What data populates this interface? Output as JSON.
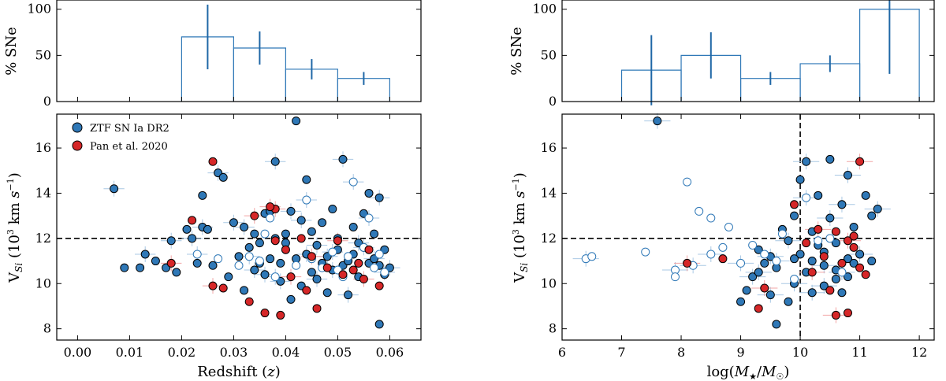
{
  "colors": {
    "ztf": "#2f78b7",
    "ztf_light": "#a9c8e4",
    "pan": "#d62728",
    "pan_light": "#f2a5a5",
    "bar": "#2f78b7"
  },
  "chart_data": [
    {
      "id": "hist_z",
      "type": "bar",
      "ylabel": "% SNe",
      "ylim": [
        0,
        110
      ],
      "yticks": [
        0,
        50,
        100
      ],
      "xlim": [
        -0.004,
        0.066
      ],
      "bins": [
        {
          "x0": 0.02,
          "x1": 0.03,
          "value": 70,
          "err": 35
        },
        {
          "x0": 0.03,
          "x1": 0.04,
          "value": 58,
          "err": 18
        },
        {
          "x0": 0.04,
          "x1": 0.05,
          "value": 35,
          "err": 11
        },
        {
          "x0": 0.05,
          "x1": 0.06,
          "value": 25,
          "err": 7
        }
      ]
    },
    {
      "id": "hist_m",
      "type": "bar",
      "ylabel": "% SNe",
      "ylim": [
        0,
        110
      ],
      "yticks": [
        0,
        50,
        100
      ],
      "xlim": [
        6,
        12.25
      ],
      "bins": [
        {
          "x0": 7,
          "x1": 8,
          "value": 34,
          "err": 38
        },
        {
          "x0": 8,
          "x1": 9,
          "value": 50,
          "err": 25
        },
        {
          "x0": 9,
          "x1": 10,
          "value": 25,
          "err": 7
        },
        {
          "x0": 10,
          "x1": 11,
          "value": 41,
          "err": 9
        },
        {
          "x0": 11,
          "x1": 12,
          "value": 100,
          "err": 70
        }
      ]
    },
    {
      "id": "scatter_z",
      "type": "scatter",
      "xlabel": "Redshift (z)",
      "ylabel": "V_Si (10^3 km s^-1)",
      "xlim": [
        -0.004,
        0.066
      ],
      "ylim": [
        7.5,
        17.5
      ],
      "xticks": [
        "0.00",
        "0.01",
        "0.02",
        "0.03",
        "0.04",
        "0.05",
        "0.06"
      ],
      "yticks": [
        8,
        10,
        12,
        14,
        16
      ],
      "hline": 12,
      "legend": [
        "ZTF SN Ia DR2",
        "Pan et al. 2020"
      ],
      "series": [
        {
          "name": "ZTF SN Ia DR2",
          "points": [
            [
              0.007,
              14.2
            ],
            [
              0.009,
              10.7
            ],
            [
              0.012,
              10.7
            ],
            [
              0.013,
              11.3
            ],
            [
              0.015,
              11.0
            ],
            [
              0.017,
              10.7
            ],
            [
              0.018,
              11.9
            ],
            [
              0.019,
              10.5
            ],
            [
              0.021,
              12.4
            ],
            [
              0.022,
              12.0
            ],
            [
              0.023,
              10.9
            ],
            [
              0.024,
              13.9
            ],
            [
              0.024,
              12.5
            ],
            [
              0.025,
              12.4
            ],
            [
              0.026,
              10.8
            ],
            [
              0.027,
              14.9
            ],
            [
              0.028,
              14.7
            ],
            [
              0.029,
              10.3
            ],
            [
              0.03,
              12.7
            ],
            [
              0.031,
              11.2
            ],
            [
              0.032,
              9.7
            ],
            [
              0.032,
              12.5
            ],
            [
              0.033,
              11.6
            ],
            [
              0.034,
              12.2
            ],
            [
              0.034,
              10.6
            ],
            [
              0.035,
              11.8
            ],
            [
              0.036,
              13.1
            ],
            [
              0.036,
              10.4
            ],
            [
              0.037,
              13.2
            ],
            [
              0.037,
              11.1
            ],
            [
              0.038,
              15.4
            ],
            [
              0.038,
              12.0
            ],
            [
              0.039,
              10.9
            ],
            [
              0.039,
              10.1
            ],
            [
              0.04,
              12.2
            ],
            [
              0.04,
              11.8
            ],
            [
              0.041,
              13.2
            ],
            [
              0.042,
              11.1
            ],
            [
              0.042,
              17.2
            ],
            [
              0.043,
              12.8
            ],
            [
              0.043,
              9.9
            ],
            [
              0.044,
              14.6
            ],
            [
              0.044,
              11.3
            ],
            [
              0.045,
              12.3
            ],
            [
              0.045,
              10.5
            ],
            [
              0.046,
              11.7
            ],
            [
              0.047,
              12.7
            ],
            [
              0.047,
              10.9
            ],
            [
              0.048,
              11.2
            ],
            [
              0.048,
              9.6
            ],
            [
              0.049,
              13.3
            ],
            [
              0.049,
              10.6
            ],
            [
              0.05,
              12.0
            ],
            [
              0.05,
              11.5
            ],
            [
              0.051,
              15.5
            ],
            [
              0.051,
              10.8
            ],
            [
              0.052,
              11.0
            ],
            [
              0.052,
              9.5
            ],
            [
              0.053,
              12.5
            ],
            [
              0.053,
              11.3
            ],
            [
              0.054,
              11.8
            ],
            [
              0.054,
              10.3
            ],
            [
              0.055,
              13.1
            ],
            [
              0.055,
              11.6
            ],
            [
              0.056,
              10.9
            ],
            [
              0.056,
              14.0
            ],
            [
              0.057,
              11.1
            ],
            [
              0.057,
              12.2
            ],
            [
              0.058,
              10.8
            ],
            [
              0.058,
              13.8
            ],
            [
              0.059,
              11.5
            ],
            [
              0.059,
              10.4
            ],
            [
              0.06,
              10.7
            ],
            [
              0.058,
              8.2
            ],
            [
              0.035,
              10.9
            ],
            [
              0.046,
              10.2
            ],
            [
              0.041,
              9.3
            ]
          ]
        },
        {
          "name": "ZTF SN Ia DR2 (open)",
          "points": [
            [
              0.023,
              11.3
            ],
            [
              0.027,
              11.1
            ],
            [
              0.031,
              10.8
            ],
            [
              0.033,
              11.2
            ],
            [
              0.035,
              11.0
            ],
            [
              0.037,
              12.9
            ],
            [
              0.038,
              10.3
            ],
            [
              0.04,
              11.5
            ],
            [
              0.042,
              10.8
            ],
            [
              0.044,
              13.7
            ],
            [
              0.045,
              11.1
            ],
            [
              0.047,
              10.7
            ],
            [
              0.049,
              11.4
            ],
            [
              0.05,
              10.6
            ],
            [
              0.052,
              11.2
            ],
            [
              0.053,
              14.5
            ],
            [
              0.054,
              10.9
            ],
            [
              0.055,
              11.6
            ],
            [
              0.056,
              12.9
            ],
            [
              0.057,
              10.7
            ],
            [
              0.058,
              11.3
            ],
            [
              0.059,
              10.5
            ],
            [
              0.036,
              12.2
            ],
            [
              0.051,
              10.3
            ]
          ]
        },
        {
          "name": "Pan et al. 2020",
          "points": [
            [
              0.018,
              10.9
            ],
            [
              0.022,
              12.8
            ],
            [
              0.026,
              15.4
            ],
            [
              0.026,
              9.9
            ],
            [
              0.028,
              9.8
            ],
            [
              0.033,
              9.2
            ],
            [
              0.034,
              13.0
            ],
            [
              0.036,
              8.7
            ],
            [
              0.038,
              11.9
            ],
            [
              0.038,
              13.3
            ],
            [
              0.039,
              8.6
            ],
            [
              0.04,
              11.5
            ],
            [
              0.041,
              10.3
            ],
            [
              0.043,
              12.0
            ],
            [
              0.044,
              9.7
            ],
            [
              0.045,
              11.2
            ],
            [
              0.046,
              8.9
            ],
            [
              0.048,
              10.7
            ],
            [
              0.05,
              11.9
            ],
            [
              0.051,
              10.4
            ],
            [
              0.053,
              10.6
            ],
            [
              0.055,
              10.2
            ],
            [
              0.056,
              11.5
            ],
            [
              0.058,
              9.9
            ],
            [
              0.037,
              13.4
            ],
            [
              0.054,
              10.9
            ]
          ]
        }
      ]
    },
    {
      "id": "scatter_m",
      "type": "scatter",
      "xlabel": "log(M★/M☉)",
      "ylabel": "V_Si (10^3 km s^-1)",
      "xlim": [
        6,
        12.25
      ],
      "ylim": [
        7.5,
        17.5
      ],
      "xticks": [
        "6",
        "7",
        "8",
        "9",
        "10",
        "11",
        "12"
      ],
      "yticks": [
        8,
        10,
        12,
        14,
        16
      ],
      "hline": 12,
      "vline": 10,
      "series": [
        {
          "name": "ZTF SN Ia DR2",
          "points": [
            [
              7.6,
              17.2
            ],
            [
              9.0,
              9.2
            ],
            [
              9.1,
              9.7
            ],
            [
              9.2,
              10.3
            ],
            [
              9.3,
              11.5
            ],
            [
              9.4,
              10.9
            ],
            [
              9.5,
              9.5
            ],
            [
              9.6,
              10.7
            ],
            [
              9.7,
              12.4
            ],
            [
              9.8,
              11.9
            ],
            [
              9.8,
              9.2
            ],
            [
              9.9,
              13.0
            ],
            [
              9.9,
              10.0
            ],
            [
              10.0,
              11.3
            ],
            [
              10.0,
              14.6
            ],
            [
              10.1,
              15.4
            ],
            [
              10.1,
              10.5
            ],
            [
              10.2,
              12.3
            ],
            [
              10.2,
              9.6
            ],
            [
              10.3,
              11.7
            ],
            [
              10.3,
              13.9
            ],
            [
              10.4,
              10.8
            ],
            [
              10.4,
              11.4
            ],
            [
              10.5,
              15.5
            ],
            [
              10.5,
              12.9
            ],
            [
              10.6,
              10.2
            ],
            [
              10.6,
              11.8
            ],
            [
              10.7,
              13.5
            ],
            [
              10.7,
              9.6
            ],
            [
              10.8,
              11.1
            ],
            [
              10.8,
              14.8
            ],
            [
              10.9,
              10.9
            ],
            [
              10.9,
              12.5
            ],
            [
              11.0,
              11.3
            ],
            [
              11.1,
              13.9
            ],
            [
              11.2,
              13.0
            ],
            [
              11.3,
              13.3
            ],
            [
              11.2,
              11.0
            ],
            [
              9.6,
              8.2
            ],
            [
              9.3,
              10.5
            ],
            [
              9.9,
              11.1
            ],
            [
              10.2,
              11.0
            ],
            [
              10.4,
              9.9
            ],
            [
              10.6,
              10.6
            ],
            [
              10.8,
              10.3
            ],
            [
              9.5,
              11.2
            ]
          ]
        },
        {
          "name": "ZTF SN Ia DR2 (open)",
          "points": [
            [
              6.4,
              11.1
            ],
            [
              6.5,
              11.2
            ],
            [
              7.4,
              11.4
            ],
            [
              7.9,
              10.6
            ],
            [
              7.9,
              10.3
            ],
            [
              8.1,
              14.5
            ],
            [
              8.2,
              10.8
            ],
            [
              8.3,
              13.2
            ],
            [
              8.5,
              12.9
            ],
            [
              8.5,
              11.3
            ],
            [
              8.7,
              11.6
            ],
            [
              8.8,
              12.5
            ],
            [
              9.0,
              10.9
            ],
            [
              9.2,
              11.7
            ],
            [
              9.4,
              11.3
            ],
            [
              9.6,
              11.0
            ],
            [
              9.7,
              12.2
            ],
            [
              9.9,
              10.2
            ],
            [
              10.1,
              13.8
            ],
            [
              10.3,
              11.9
            ],
            [
              10.5,
              12.0
            ],
            [
              10.7,
              10.5
            ]
          ]
        },
        {
          "name": "Pan et al. 2020",
          "points": [
            [
              8.1,
              10.9
            ],
            [
              8.7,
              11.1
            ],
            [
              9.3,
              8.9
            ],
            [
              9.4,
              9.8
            ],
            [
              9.9,
              13.5
            ],
            [
              10.1,
              11.8
            ],
            [
              10.2,
              10.5
            ],
            [
              10.4,
              11.2
            ],
            [
              10.5,
              9.7
            ],
            [
              10.6,
              8.6
            ],
            [
              10.6,
              12.3
            ],
            [
              10.7,
              10.9
            ],
            [
              10.8,
              11.9
            ],
            [
              10.8,
              8.7
            ],
            [
              10.9,
              12.1
            ],
            [
              11.0,
              15.4
            ],
            [
              11.0,
              10.7
            ],
            [
              11.1,
              10.4
            ],
            [
              10.3,
              12.4
            ],
            [
              10.9,
              11.6
            ]
          ]
        }
      ]
    }
  ]
}
